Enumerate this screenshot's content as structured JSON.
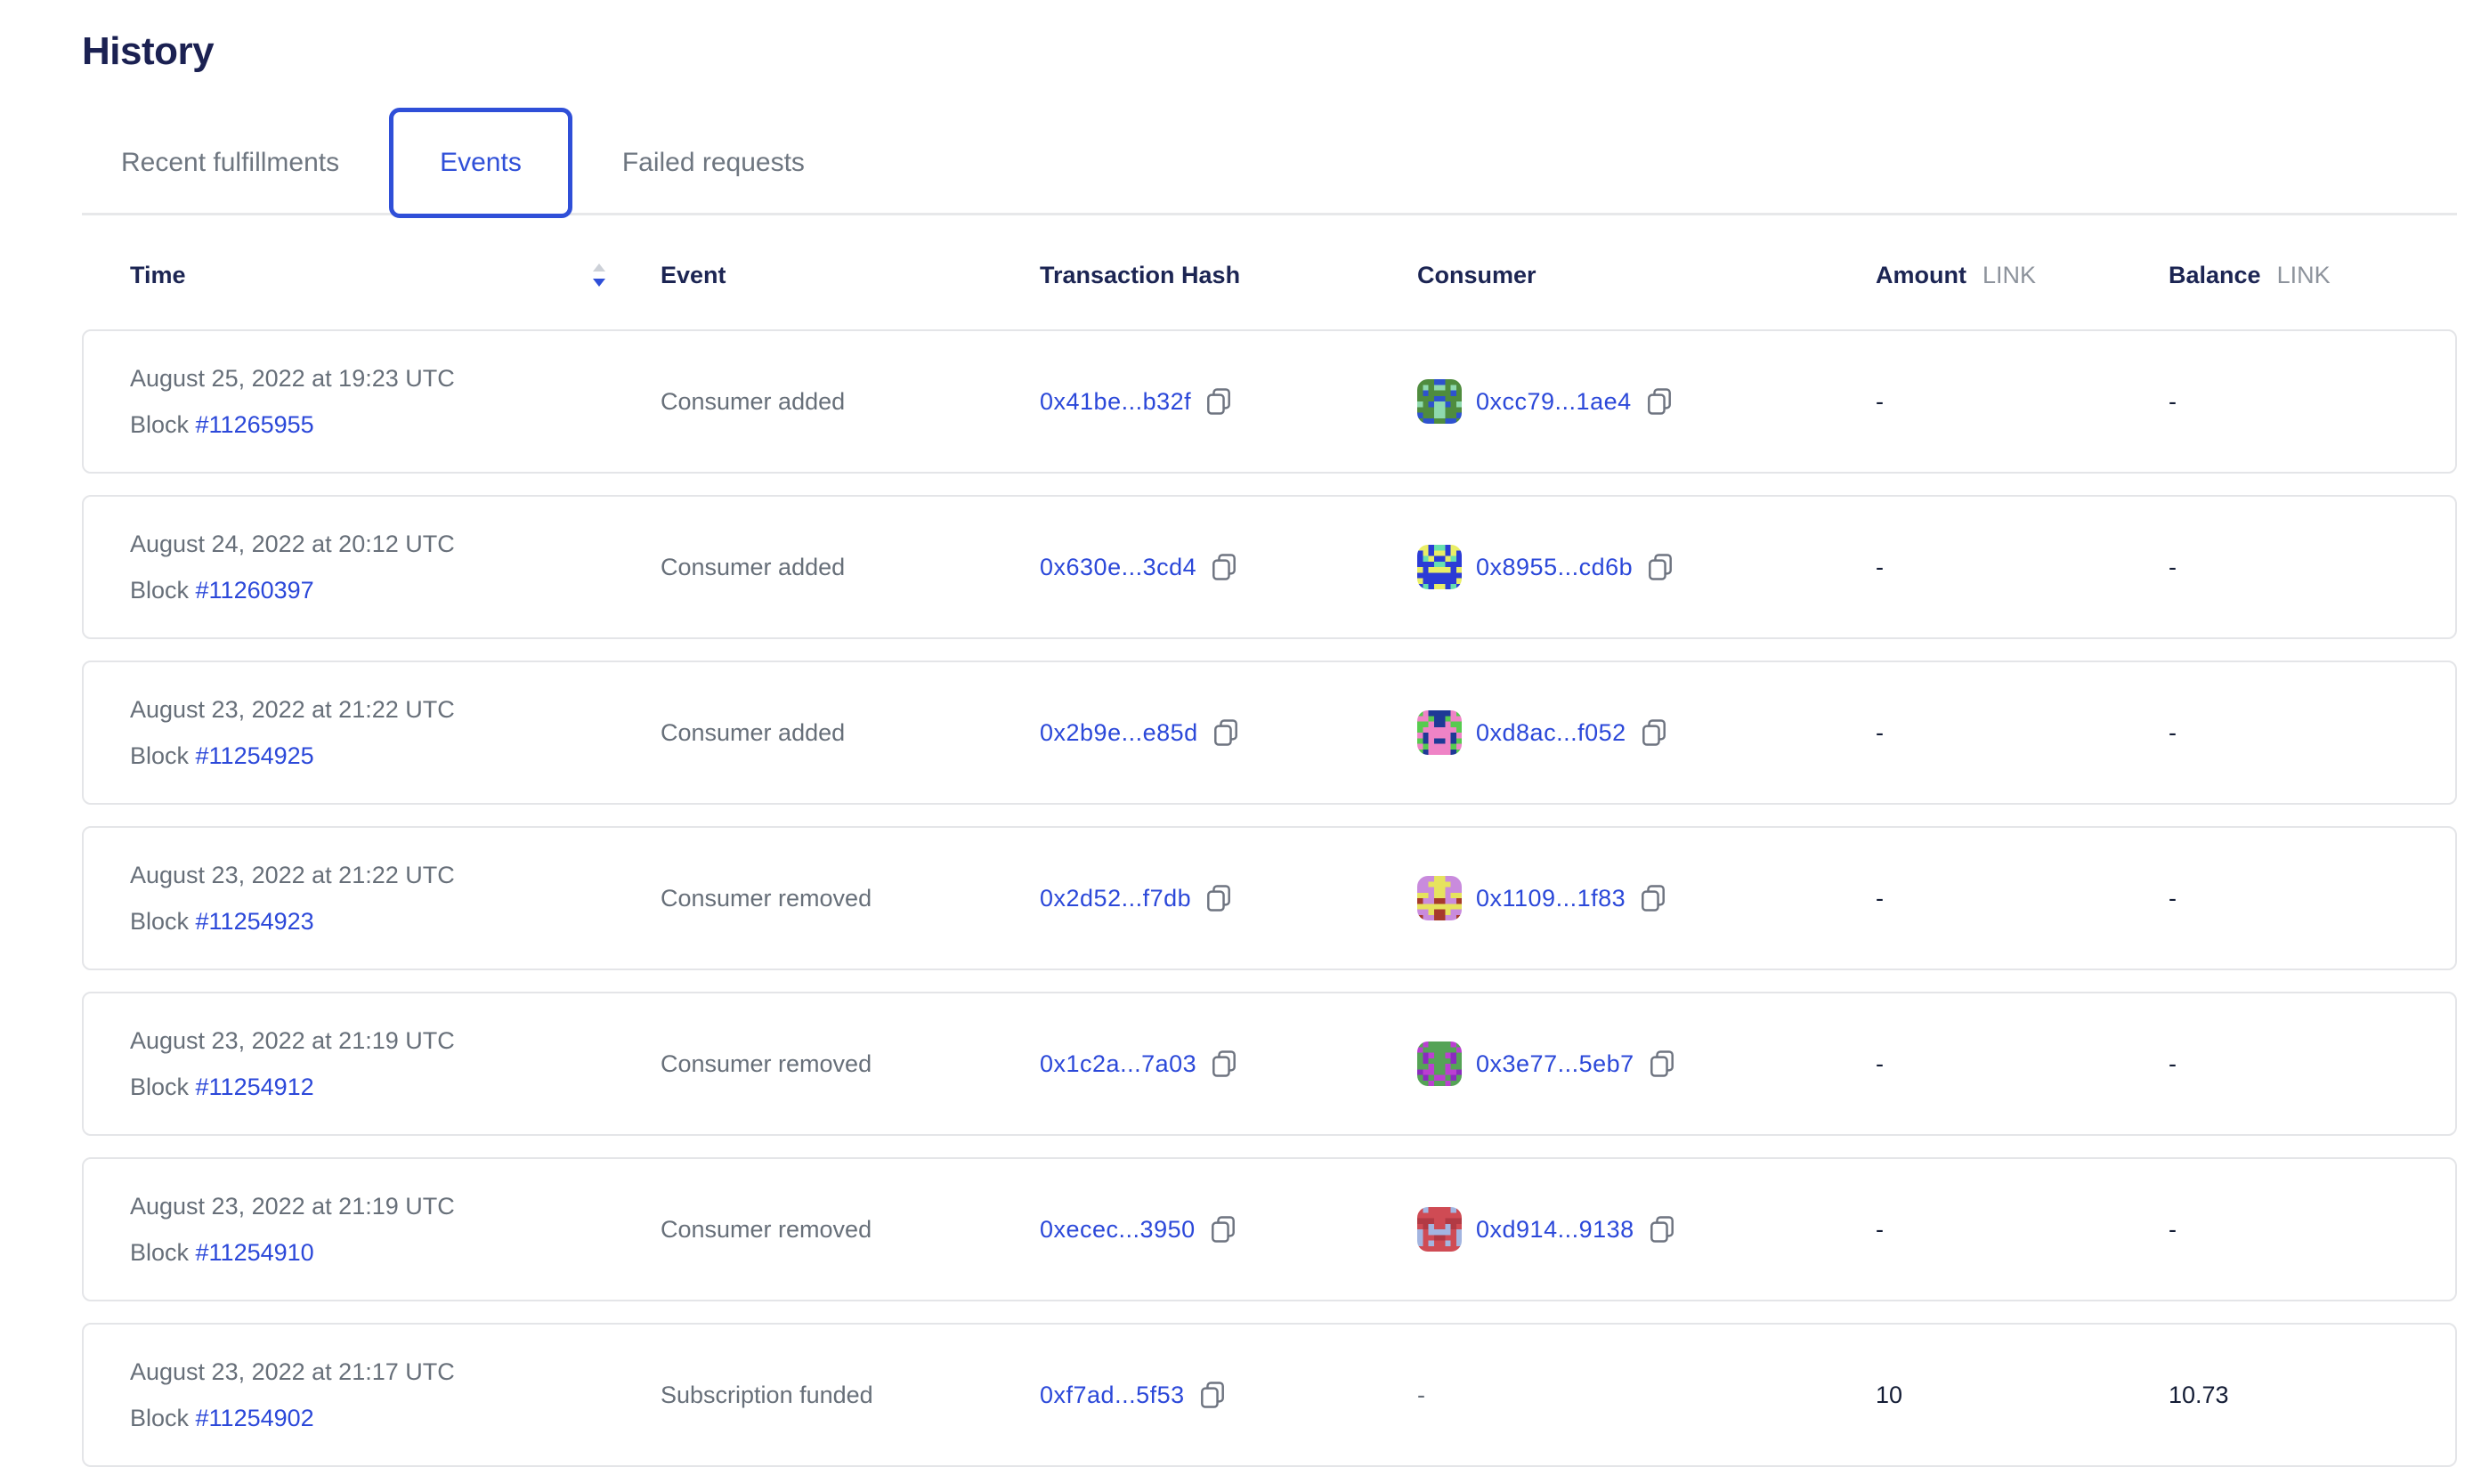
{
  "page": {
    "title": "History"
  },
  "tabs": [
    {
      "label": "Recent fulfillments",
      "active": false
    },
    {
      "label": "Events",
      "active": true
    },
    {
      "label": "Failed requests",
      "active": false
    }
  ],
  "colors": {
    "accent_blue": "#2f4fd8",
    "link_blue": "#2b48d9",
    "heading_navy": "#1c2553",
    "muted_gray": "#676f79",
    "unit_gray": "#8d939c"
  },
  "table": {
    "columns": {
      "time": "Time",
      "event": "Event",
      "tx": "Transaction Hash",
      "consumer": "Consumer",
      "amount": "Amount",
      "balance": "Balance",
      "link_unit": "LINK"
    },
    "sort": {
      "column": "time",
      "direction": "desc"
    },
    "block_label": "Block",
    "rows": [
      {
        "date": "August 25, 2022 at 19:23 UTC",
        "block": "#11265955",
        "event": "Consumer added",
        "tx_hash": "0x41be...b32f",
        "consumer": "0xcc79...1ae4",
        "amount": "-",
        "balance": "-",
        "identicon": {
          "bg": "#4f8c3e",
          "c1": "#2e52cf",
          "c2": "#8fd9ae"
        }
      },
      {
        "date": "August 24, 2022 at 20:12 UTC",
        "block": "#11260397",
        "event": "Consumer added",
        "tx_hash": "0x630e...3cd4",
        "consumer": "0x8955...cd6b",
        "amount": "-",
        "balance": "-",
        "identicon": {
          "bg": "#2b3bd6",
          "c1": "#e9ee66",
          "c2": "#67e0ae"
        }
      },
      {
        "date": "August 23, 2022 at 21:22 UTC",
        "block": "#11254925",
        "event": "Consumer added",
        "tx_hash": "0x2b9e...e85d",
        "consumer": "0xd8ac...f052",
        "amount": "-",
        "balance": "-",
        "identicon": {
          "bg": "#ef83c6",
          "c1": "#57cb4f",
          "c2": "#1e3a96"
        }
      },
      {
        "date": "August 23, 2022 at 21:22 UTC",
        "block": "#11254923",
        "event": "Consumer removed",
        "tx_hash": "0x2d52...f7db",
        "consumer": "0x1109...1f83",
        "amount": "-",
        "balance": "-",
        "identicon": {
          "bg": "#c98bdd",
          "c1": "#e6e35e",
          "c2": "#a63a2c"
        }
      },
      {
        "date": "August 23, 2022 at 21:19 UTC",
        "block": "#11254912",
        "event": "Consumer removed",
        "tx_hash": "0x1c2a...7a03",
        "consumer": "0x3e77...5eb7",
        "amount": "-",
        "balance": "-",
        "identicon": {
          "bg": "#55a356",
          "c1": "#bb3fd1",
          "c2": "#8a2bbf"
        }
      },
      {
        "date": "August 23, 2022 at 21:19 UTC",
        "block": "#11254910",
        "event": "Consumer removed",
        "tx_hash": "0xecec...3950",
        "consumer": "0xd914...9138",
        "amount": "-",
        "balance": "-",
        "identicon": {
          "bg": "#cf4b54",
          "c1": "#a3b5e0",
          "c2": "#b23a44"
        }
      },
      {
        "date": "August 23, 2022 at 21:17 UTC",
        "block": "#11254902",
        "event": "Subscription funded",
        "tx_hash": "0xf7ad...5f53",
        "consumer": null,
        "amount": "10",
        "balance": "10.73",
        "identicon": null
      }
    ]
  }
}
